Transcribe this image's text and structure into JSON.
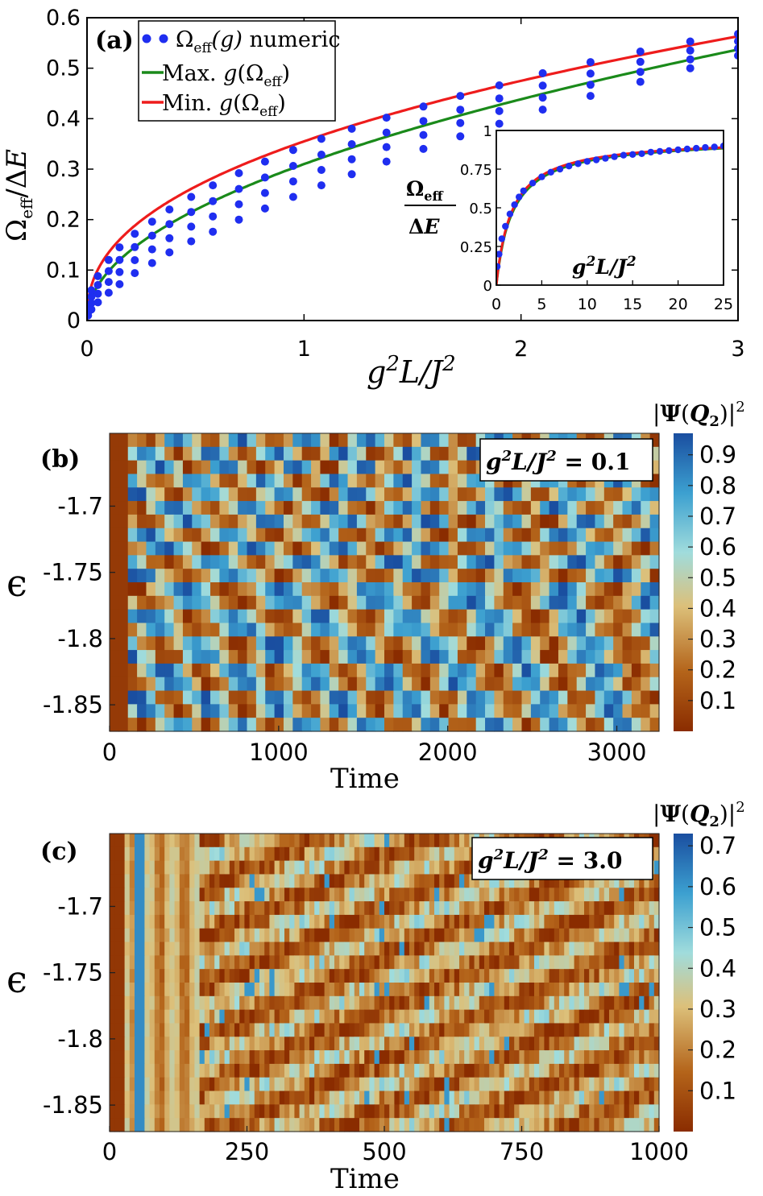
{
  "panels": {
    "a": {
      "label": "(a)",
      "legend": {
        "numeric": "Ω_eff(g) numeric",
        "max": "Max. g(Ω_eff)",
        "min": "Min. g(Ω_eff)"
      },
      "xlabel": "g²L/J²",
      "ylabel": "Ω_eff/ΔE"
    },
    "a_inset": {
      "xlabel": "g²L/J²",
      "ylabel_num": "Ω_eff",
      "ylabel_den": "ΔE"
    },
    "b": {
      "label": "(b)",
      "annotation": "g²L/J² = 0.1",
      "colorbar_title": "|Ψ(Q₂)|²",
      "xlabel": "Time",
      "ylabel": "ϵ"
    },
    "c": {
      "label": "(c)",
      "annotation": "g²L/J² = 3.0",
      "colorbar_title": "|Ψ(Q₂)|²",
      "xlabel": "Time",
      "ylabel": "ϵ"
    }
  },
  "colors": {
    "numeric": "#1f2ef0",
    "max": "#1a8a1a",
    "min": "#ee1c1c",
    "cmap": [
      "#8a2c00",
      "#b4641a",
      "#dcc07a",
      "#a0dcdc",
      "#3ca0d0",
      "#1a4ea0"
    ]
  },
  "chart_data": [
    {
      "type": "scatter",
      "id": "a",
      "xlim": [
        0,
        3
      ],
      "ylim": [
        0,
        0.6
      ],
      "xticks": [
        0,
        1,
        2,
        3
      ],
      "yticks": [
        0,
        0.1,
        0.2,
        0.3,
        0.4,
        0.5,
        0.6
      ],
      "grid": false,
      "legend_position": "top-left",
      "series": [
        {
          "name": "Ω_eff(g) numeric",
          "kind": "points",
          "x": [
            0.005,
            0.02,
            0.05,
            0.1,
            0.15,
            0.22,
            0.3,
            0.38,
            0.48,
            0.58,
            0.7,
            0.82,
            0.95,
            1.08,
            1.22,
            1.38,
            1.55,
            1.72,
            1.9,
            2.1,
            2.32,
            2.55,
            2.78,
            3.0
          ],
          "y_max": [
            0.028,
            0.06,
            0.088,
            0.12,
            0.145,
            0.172,
            0.196,
            0.22,
            0.245,
            0.268,
            0.292,
            0.315,
            0.338,
            0.36,
            0.38,
            0.402,
            0.424,
            0.445,
            0.466,
            0.49,
            0.512,
            0.533,
            0.553,
            0.568
          ],
          "y_min": [
            0.01,
            0.022,
            0.036,
            0.055,
            0.072,
            0.094,
            0.114,
            0.135,
            0.157,
            0.176,
            0.2,
            0.222,
            0.245,
            0.268,
            0.29,
            0.315,
            0.34,
            0.365,
            0.39,
            0.418,
            0.445,
            0.473,
            0.5,
            0.525
          ]
        },
        {
          "name": "Max. g(Ω_eff)",
          "kind": "line",
          "formula": "y = 0.31*x^0.5"
        },
        {
          "name": "Min. g(Ω_eff)",
          "kind": "line",
          "formula": "y = 0.355*x^0.42"
        }
      ]
    },
    {
      "type": "line",
      "id": "a_inset",
      "xlim": [
        0,
        25
      ],
      "ylim": [
        0,
        1
      ],
      "xticks": [
        0,
        5,
        10,
        15,
        20,
        25
      ],
      "yticks": [
        0,
        0.25,
        0.5,
        0.75,
        1
      ],
      "series": [
        {
          "name": "Ω_eff(g) numeric",
          "kind": "points",
          "x": [
            0.1,
            0.3,
            0.6,
            1.0,
            1.5,
            2.0,
            2.5,
            3.0,
            4.0,
            5.0,
            6.0,
            7.0,
            8.0,
            9.0,
            10.0,
            11.0,
            12.0,
            13.0,
            14.0,
            15.0,
            16.0,
            17.0,
            18.0,
            19.0,
            20.0,
            21.0,
            22.0,
            23.0,
            24.0,
            25.0
          ],
          "y": [
            0.12,
            0.2,
            0.3,
            0.38,
            0.46,
            0.52,
            0.57,
            0.61,
            0.66,
            0.7,
            0.73,
            0.75,
            0.77,
            0.785,
            0.8,
            0.81,
            0.82,
            0.83,
            0.84,
            0.845,
            0.85,
            0.86,
            0.865,
            0.87,
            0.875,
            0.88,
            0.885,
            0.89,
            0.893,
            0.9
          ]
        },
        {
          "name": "Max. g(Ω_eff)",
          "kind": "line"
        },
        {
          "name": "Min. g(Ω_eff)",
          "kind": "line"
        }
      ]
    },
    {
      "type": "heatmap",
      "id": "b",
      "xlim": [
        0,
        3250
      ],
      "ylim": [
        -1.87,
        -1.645
      ],
      "xticks": [
        0,
        1000,
        2000,
        3000
      ],
      "yticks": [
        -1.7,
        -1.75,
        -1.8,
        -1.85
      ],
      "ytick_labels": [
        "-1.7",
        "-1.75",
        "-1.8",
        "-1.85"
      ],
      "colorbar": {
        "range": [
          0,
          0.97
        ],
        "ticks": [
          0.1,
          0.2,
          0.3,
          0.4,
          0.5,
          0.6,
          0.7,
          0.8,
          0.9
        ]
      },
      "rows": 22,
      "columns": 60,
      "pattern": "mode-beating oscillation, period ~500 in time"
    },
    {
      "type": "heatmap",
      "id": "c",
      "xlim": [
        0,
        1000
      ],
      "ylim": [
        -1.87,
        -1.645
      ],
      "xticks": [
        0,
        250,
        500,
        750,
        1000
      ],
      "yticks": [
        -1.7,
        -1.75,
        -1.8,
        -1.85
      ],
      "ytick_labels": [
        "-1.7",
        "-1.75",
        "-1.8",
        "-1.85"
      ],
      "colorbar": {
        "range": [
          0,
          0.73
        ],
        "ticks": [
          0.1,
          0.2,
          0.3,
          0.4,
          0.5,
          0.6,
          0.7
        ]
      },
      "rows": 22,
      "columns": 110,
      "pattern": "irregular, speckled; bright stripe near time 50"
    }
  ]
}
